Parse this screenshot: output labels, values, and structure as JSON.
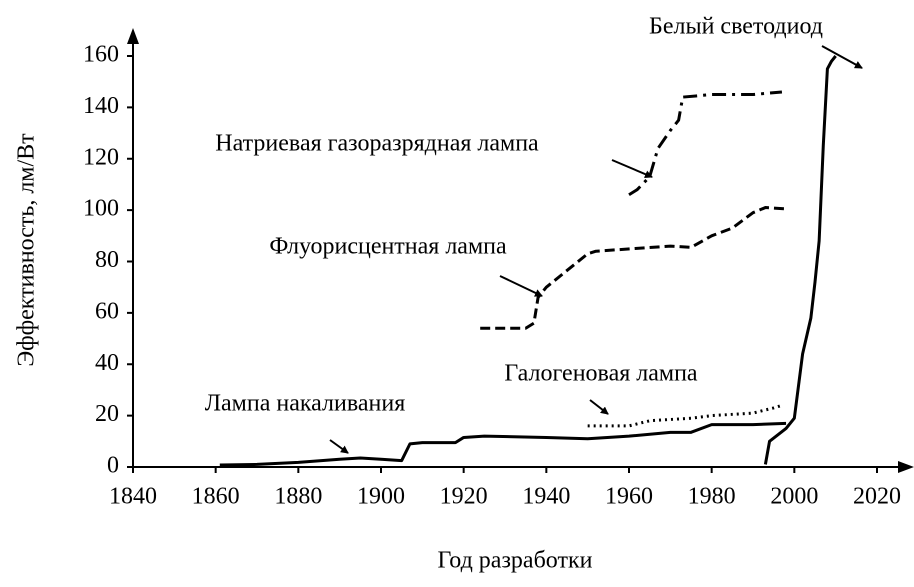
{
  "chart_data": {
    "type": "line",
    "xlabel": "Год разработки",
    "ylabel": "Эффективность, лм/Вт",
    "xlim": [
      1840,
      2025
    ],
    "xticks": [
      1840,
      1860,
      1880,
      1900,
      1920,
      1940,
      1960,
      1980,
      2000,
      2020
    ],
    "ylim": [
      0,
      170
    ],
    "yticks": [
      0,
      20,
      40,
      60,
      80,
      100,
      120,
      140,
      160
    ],
    "grid": false,
    "series": [
      {
        "color": "#000000",
        "linestyle": "solid",
        "x": [
          1861,
          1870,
          1880,
          1890,
          1895,
          1900,
          1905,
          1907,
          1910,
          1918,
          1920,
          1925,
          1940,
          1950,
          1960,
          1970,
          1975,
          1980,
          1985,
          1990,
          1998
        ],
        "values": [
          0.8,
          1,
          1.8,
          3,
          3.5,
          3,
          2.5,
          9,
          9.5,
          9.5,
          11.5,
          12,
          11.5,
          11,
          12,
          13.5,
          13.5,
          16.5,
          16.5,
          16.5,
          17
        ]
      },
      {
        "color": "#000000",
        "linestyle": "dotted",
        "x": [
          1950,
          1960,
          1965,
          1975,
          1980,
          1990,
          1995,
          1997
        ],
        "values": [
          16,
          16,
          18,
          19,
          20,
          21,
          23,
          24
        ]
      },
      {
        "color": "#000000",
        "linestyle": "dashed",
        "x": [
          1924,
          1935,
          1937,
          1938,
          1940,
          1950,
          1952,
          1970,
          1975,
          1980,
          1985,
          1990,
          1993,
          1998
        ],
        "values": [
          54,
          54,
          56,
          66,
          70,
          83,
          84,
          86,
          85.5,
          90,
          93,
          99,
          101,
          100.5
        ]
      },
      {
        "color": "#000000",
        "linestyle": "dashdot",
        "x": [
          1960,
          1962,
          1965,
          1967,
          1970,
          1972,
          1973,
          1980,
          1990,
          1997
        ],
        "values": [
          106,
          108,
          113,
          124,
          131,
          135,
          144,
          145,
          145,
          146
        ]
      },
      {
        "color": "#000000",
        "linestyle": "solid",
        "x": [
          1993,
          1994,
          1998,
          2000,
          2002,
          2004,
          2005,
          2006,
          2007,
          2008,
          2009,
          2010
        ],
        "values": [
          1,
          10,
          15,
          19,
          44,
          58,
          72,
          88,
          125,
          155,
          158,
          160
        ]
      }
    ],
    "annotations": [
      "Лампа накаливания",
      "Галогеновая лампа",
      "Флуорисцентная лампа",
      "Натриевая газоразрядная лампа",
      "Белый светодиод"
    ]
  }
}
